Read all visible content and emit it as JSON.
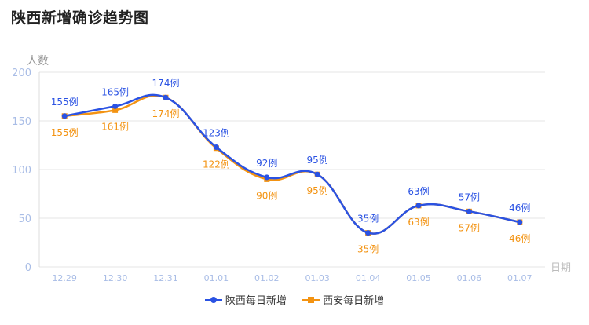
{
  "page": {
    "title": "陕西新增确诊趋势图"
  },
  "chart_data": {
    "type": "line",
    "ylabel": "人数",
    "xlabel": "日期",
    "ylim": [
      0,
      200
    ],
    "yticks": [
      0,
      50,
      100,
      150,
      200
    ],
    "grid": true,
    "legend_position": "bottom",
    "smooth": true,
    "categories": [
      "12.29",
      "12.30",
      "12.31",
      "01.01",
      "01.02",
      "01.03",
      "01.04",
      "01.05",
      "01.06",
      "01.07"
    ],
    "series": [
      {
        "name": "陕西每日新增",
        "color": "#2a52e3",
        "marker": "circle",
        "label_position": "above",
        "values": [
          155,
          165,
          174,
          123,
          92,
          95,
          35,
          63,
          57,
          46
        ],
        "labels": [
          "155例",
          "165例",
          "174例",
          "123例",
          "92例",
          "95例",
          "35例",
          "63例",
          "57例",
          "46例"
        ]
      },
      {
        "name": "西安每日新增",
        "color": "#f39312",
        "marker": "square",
        "label_position": "below",
        "values": [
          155,
          161,
          174,
          122,
          90,
          95,
          35,
          63,
          57,
          46
        ],
        "labels": [
          "155例",
          "161例",
          "174例",
          "122例",
          "90例",
          "95例",
          "35例",
          "63例",
          "57例",
          "46例"
        ]
      }
    ]
  }
}
